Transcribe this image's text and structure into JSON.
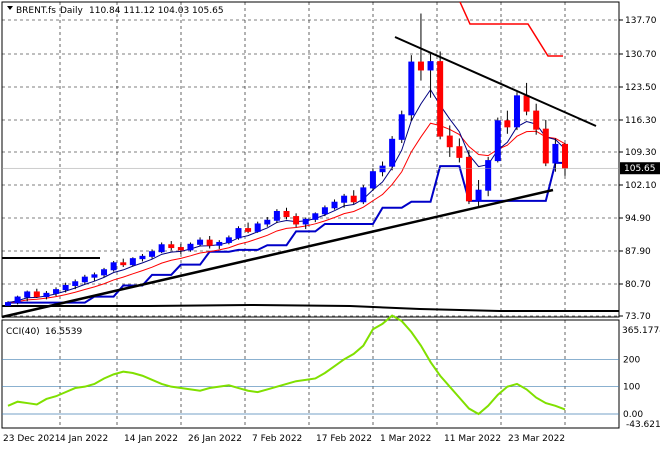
{
  "header": {
    "symbol": "BRENT.fs",
    "timeframe": "Daily",
    "ohlc": "110.84 111.12 104.03 105.65"
  },
  "indicator": {
    "name": "CCI(40)",
    "value": "16.5539",
    "levels": [
      "200",
      "100",
      "0.00"
    ],
    "scale_top": "365.1774",
    "scale_bottom": "-43.6212"
  },
  "colors": {
    "up": "#0000ff",
    "down": "#ff0000",
    "ma_fast": "#000080",
    "ma_mid": "#ff0000",
    "ma_slow": "#000000",
    "kijun": "#0000c8",
    "cci": "#80e000",
    "grid": "#000000",
    "level": "#4682b4",
    "label_bg": "#000000"
  },
  "chart_data": {
    "type": "candlestick",
    "price_axis": {
      "labels": [
        "137.70",
        "130.70",
        "123.50",
        "116.30",
        "109.30",
        "102.10",
        "94.90",
        "87.90",
        "80.70",
        "73.70"
      ],
      "min": 73.7,
      "max": 140.5,
      "last_price_label": "105.65"
    },
    "x_axis": {
      "labels": [
        "23 Dec 2021",
        "4 Jan 2022",
        "14 Jan 2022",
        "26 Jan 2022",
        "7 Feb 2022",
        "17 Feb 2022",
        "1 Mar 2022",
        "11 Mar 2022",
        "23 Mar 2022"
      ]
    },
    "grid": true,
    "ohlc": [
      [
        76.0,
        76.9,
        75.7,
        76.6
      ],
      [
        76.6,
        78.1,
        76.2,
        77.8
      ],
      [
        77.8,
        79.2,
        76.9,
        78.9
      ],
      [
        78.9,
        79.6,
        77.6,
        77.9
      ],
      [
        77.9,
        79.1,
        77.3,
        78.6
      ],
      [
        78.6,
        79.9,
        78.0,
        79.4
      ],
      [
        79.4,
        80.9,
        78.8,
        80.3
      ],
      [
        80.3,
        81.6,
        79.5,
        81.1
      ],
      [
        81.1,
        82.6,
        80.6,
        82.1
      ],
      [
        82.1,
        83.1,
        81.3,
        82.6
      ],
      [
        82.6,
        84.1,
        82.1,
        83.7
      ],
      [
        83.7,
        85.6,
        83.3,
        85.2
      ],
      [
        85.2,
        86.1,
        84.3,
        84.8
      ],
      [
        84.8,
        86.4,
        84.4,
        86.1
      ],
      [
        86.1,
        87.1,
        85.5,
        86.6
      ],
      [
        86.6,
        88.1,
        86.1,
        87.6
      ],
      [
        87.6,
        89.6,
        87.3,
        89.1
      ],
      [
        89.1,
        89.9,
        87.9,
        88.5
      ],
      [
        88.5,
        89.3,
        87.1,
        88.0
      ],
      [
        88.0,
        89.6,
        87.6,
        89.2
      ],
      [
        89.2,
        90.7,
        88.8,
        90.1
      ],
      [
        90.1,
        91.0,
        88.3,
        89.0
      ],
      [
        89.0,
        90.1,
        88.2,
        89.6
      ],
      [
        89.6,
        91.1,
        89.2,
        90.6
      ],
      [
        90.6,
        93.1,
        90.2,
        92.6
      ],
      [
        92.6,
        93.9,
        91.6,
        92.0
      ],
      [
        92.0,
        94.1,
        91.7,
        93.6
      ],
      [
        93.6,
        95.1,
        93.0,
        94.4
      ],
      [
        94.4,
        96.8,
        93.8,
        96.3
      ],
      [
        96.3,
        97.1,
        94.6,
        95.2
      ],
      [
        95.2,
        95.9,
        92.9,
        93.6
      ],
      [
        93.6,
        95.0,
        92.5,
        94.6
      ],
      [
        94.6,
        96.1,
        94.0,
        95.8
      ],
      [
        95.8,
        97.6,
        95.3,
        97.1
      ],
      [
        97.1,
        98.9,
        96.7,
        98.3
      ],
      [
        98.3,
        100.1,
        97.1,
        99.6
      ],
      [
        99.6,
        100.9,
        97.9,
        98.4
      ],
      [
        98.4,
        102.0,
        97.9,
        101.4
      ],
      [
        101.4,
        105.6,
        100.8,
        104.9
      ],
      [
        104.9,
        107.1,
        103.9,
        106.1
      ],
      [
        106.1,
        112.6,
        105.2,
        111.9
      ],
      [
        111.9,
        118.1,
        111.1,
        117.2
      ],
      [
        117.2,
        130.1,
        115.9,
        128.6
      ],
      [
        128.6,
        139.1,
        124.6,
        126.9
      ],
      [
        126.9,
        130.4,
        120.9,
        128.7
      ],
      [
        128.7,
        130.9,
        111.9,
        112.6
      ],
      [
        112.6,
        114.9,
        108.1,
        110.3
      ],
      [
        110.3,
        112.1,
        106.9,
        108.0
      ],
      [
        108.0,
        109.6,
        97.9,
        98.6
      ],
      [
        98.6,
        103.1,
        97.1,
        100.9
      ],
      [
        100.9,
        108.1,
        99.6,
        107.3
      ],
      [
        107.3,
        116.6,
        106.9,
        115.9
      ],
      [
        115.9,
        118.1,
        113.1,
        114.6
      ],
      [
        114.6,
        122.1,
        113.9,
        121.3
      ],
      [
        121.3,
        124.1,
        117.1,
        118.0
      ],
      [
        118.0,
        119.6,
        112.9,
        114.1
      ],
      [
        114.1,
        116.1,
        106.1,
        106.8
      ],
      [
        106.8,
        112.1,
        104.9,
        110.8
      ],
      [
        110.8,
        111.1,
        104.0,
        105.65
      ]
    ],
    "cci": [
      30,
      45,
      40,
      35,
      55,
      65,
      80,
      95,
      100,
      110,
      130,
      145,
      155,
      150,
      140,
      125,
      110,
      100,
      95,
      90,
      85,
      95,
      100,
      105,
      95,
      85,
      80,
      90,
      100,
      110,
      120,
      125,
      130,
      150,
      175,
      200,
      220,
      250,
      310,
      330,
      360,
      340,
      300,
      250,
      190,
      140,
      100,
      60,
      20,
      0,
      30,
      70,
      100,
      110,
      90,
      60,
      40,
      30,
      16.55
    ]
  }
}
